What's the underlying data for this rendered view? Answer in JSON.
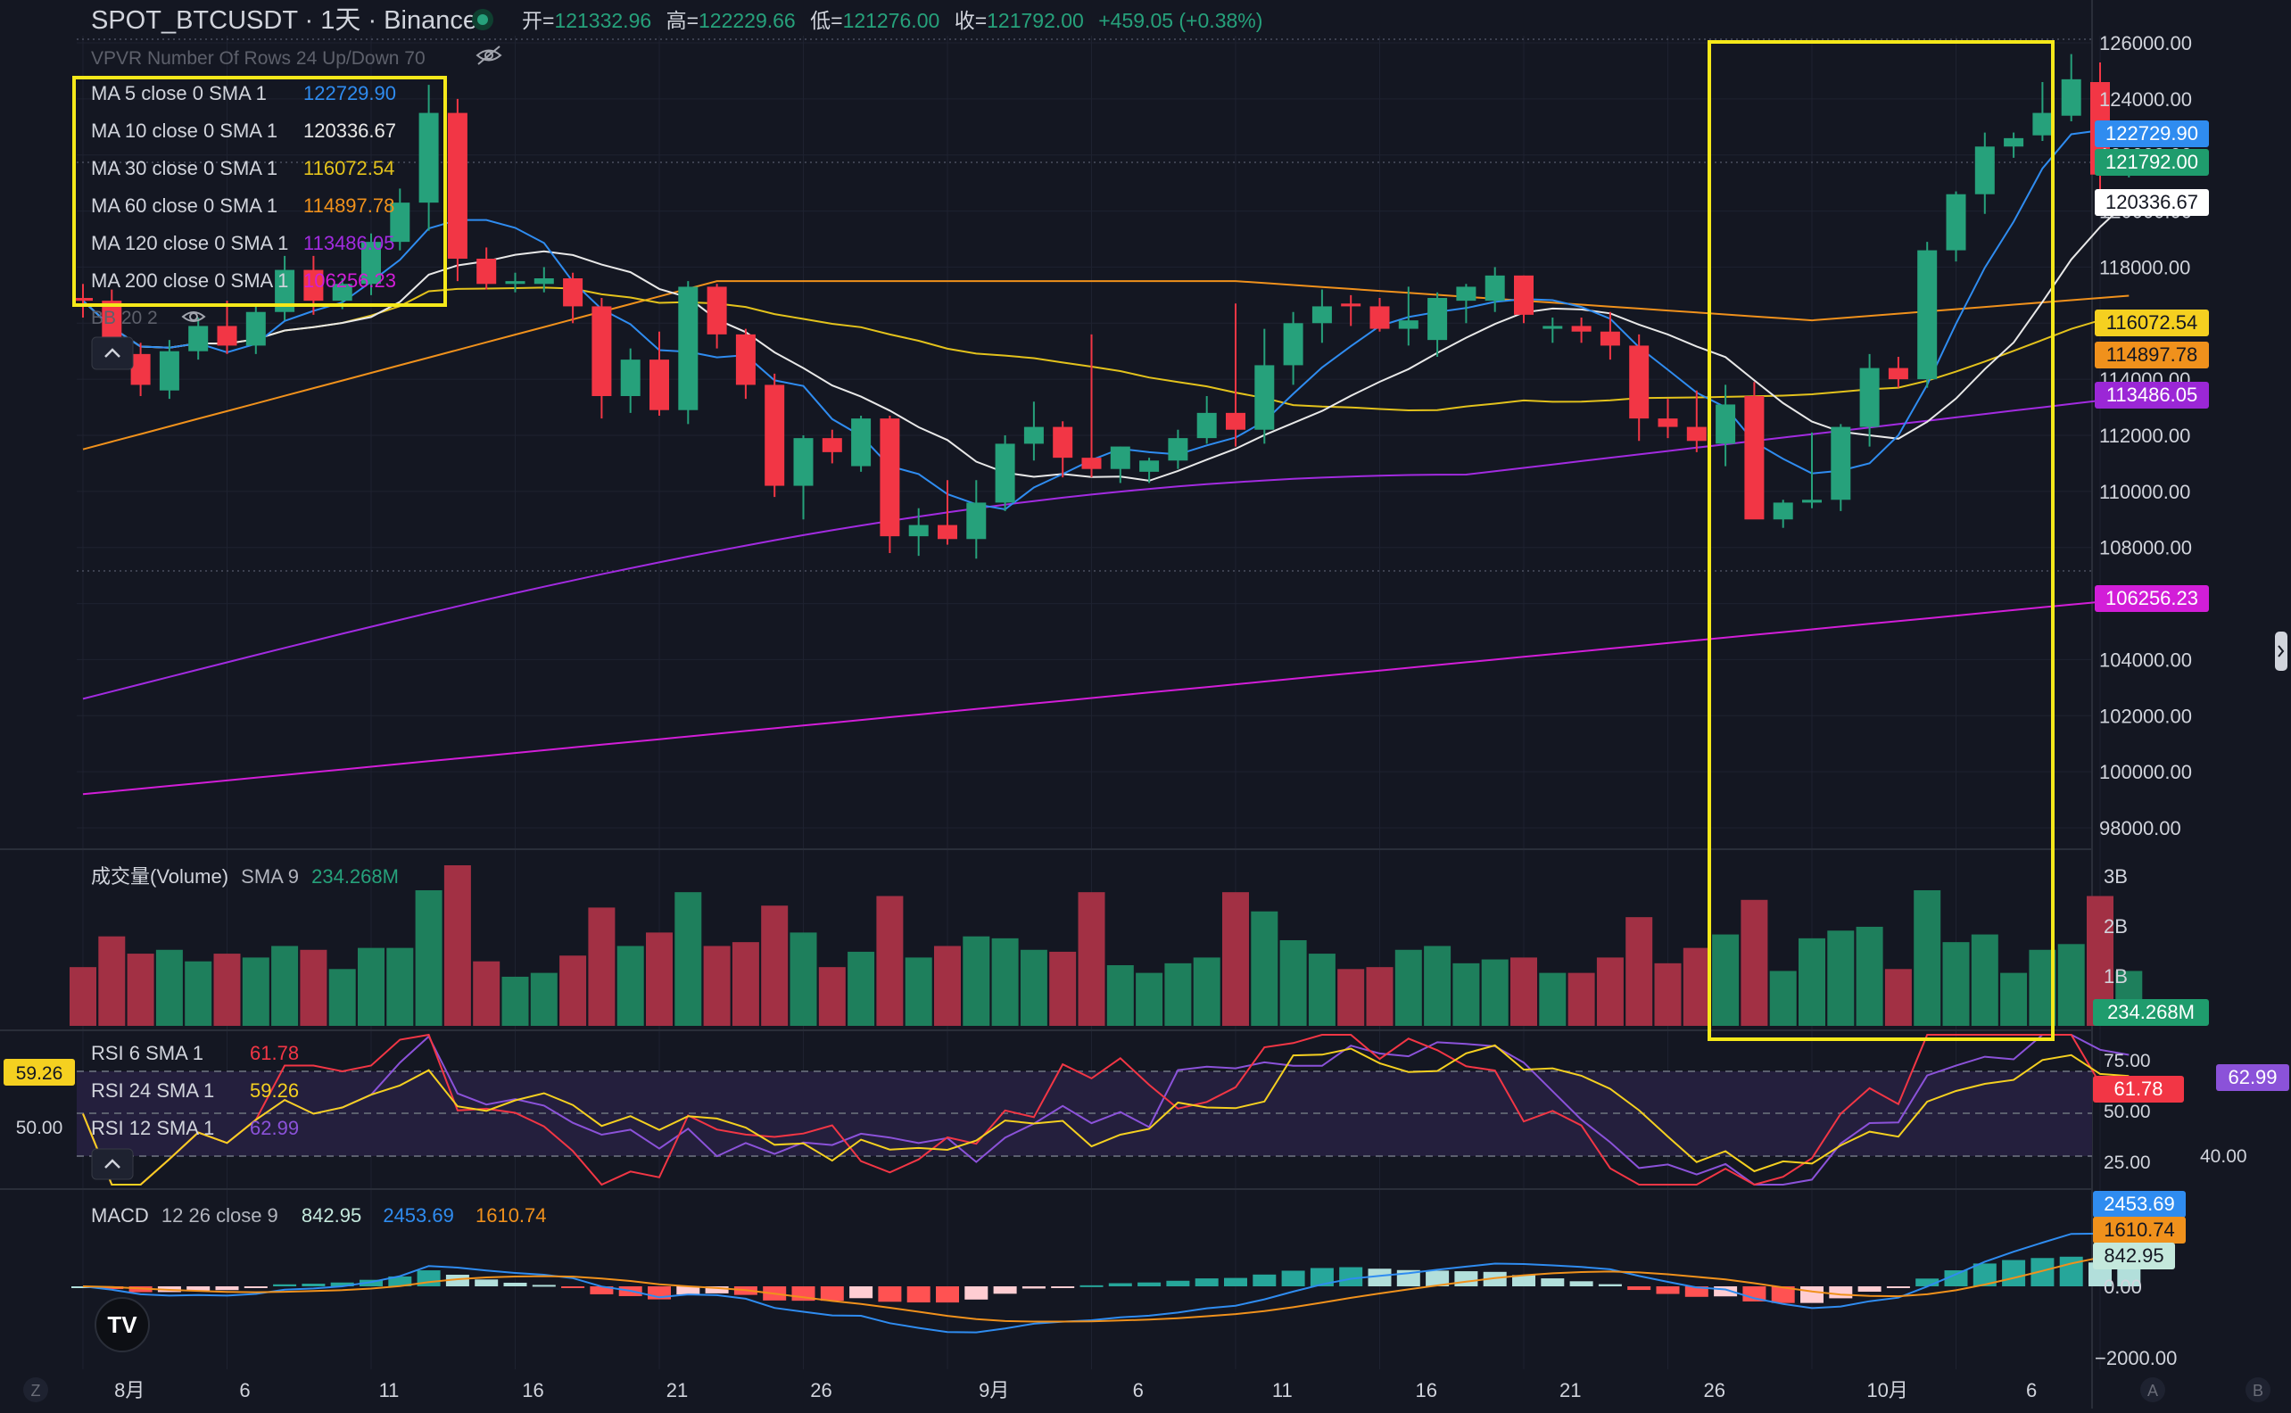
{
  "header": {
    "symbol": "SPOT_BTCUSDT · 1天 · Binance",
    "ohlc": [
      {
        "k": "开=",
        "v": "121332.96"
      },
      {
        "k": "高=",
        "v": "122229.66"
      },
      {
        "k": "低=",
        "v": "121276.00"
      },
      {
        "k": "收=",
        "v": "121792.00"
      }
    ],
    "change": "+459.05 (+0.38%)"
  },
  "vpvr_label": "VPVR Number Of Rows 24 Up/Down 70",
  "bb_label": "BB 20 2",
  "ma_legend": [
    {
      "label": "MA 5 close 0 SMA 1",
      "value": "122729.90",
      "color": "#2f8cf0"
    },
    {
      "label": "MA 10 close 0 SMA 1",
      "value": "120336.67",
      "color": "#e8e8e8"
    },
    {
      "label": "MA 30 close 0 SMA 1",
      "value": "116072.54",
      "color": "#e3c21c"
    },
    {
      "label": "MA 60 close 0 SMA 1",
      "value": "114897.78",
      "color": "#f0911c"
    },
    {
      "label": "MA 120 close 0 SMA 1",
      "value": "113486.05",
      "color": "#a22be0"
    },
    {
      "label": "MA 200 close 0 SMA 1",
      "value": "106256.23",
      "color": "#d21ed8"
    }
  ],
  "price_badges": [
    {
      "value": "122729.90",
      "color": "#2f8cf0"
    },
    {
      "value": "121792.00",
      "color": "#1f9c6d"
    },
    {
      "value": "120336.67",
      "color": "#ffffff"
    },
    {
      "value": "116072.54",
      "color": "#f5d020"
    },
    {
      "value": "114897.78",
      "color": "#f0911c"
    },
    {
      "value": "113486.05",
      "color": "#9b27d6"
    },
    {
      "value": "106256.23",
      "color": "#d21ed8"
    }
  ],
  "volume": {
    "label": "成交量(Volume)",
    "sma_label": "SMA 9",
    "sma_value": "234.268M",
    "badge": "234.268M"
  },
  "rsi": {
    "legend": [
      {
        "label": "RSI 6 SMA 1",
        "value": "61.78",
        "color": "#f23645"
      },
      {
        "label": "RSI 24 SMA 1",
        "value": "59.26",
        "color": "#f5d020"
      },
      {
        "label": "RSI 12 SMA 1",
        "value": "62.99",
        "color": "#8b52d9"
      }
    ],
    "left_badge": "59.26",
    "left_level": "50.00",
    "badge_red": "61.78",
    "badge_purple": "62.99",
    "aux_right": "40.00"
  },
  "macd": {
    "label": "MACD",
    "params": "12 26 close 9",
    "hist": "842.95",
    "macd": "2453.69",
    "signal": "1610.74",
    "badge_blue": "2453.69",
    "badge_orange": "1610.74",
    "badge_teal": "842.95"
  },
  "date_labels": [
    "8月",
    "6",
    "11",
    "16",
    "21",
    "26",
    "9月",
    "6",
    "11",
    "16",
    "21",
    "26",
    "10月",
    "6"
  ],
  "corner_buttons": {
    "left": "Z",
    "a": "A",
    "b": "B"
  },
  "colors": {
    "up": "#26a17b",
    "down": "#f23645",
    "vol_up": "#1e7f5c",
    "vol_down": "#a23044",
    "highlight": "#f5e81a",
    "bg": "#141722"
  },
  "chart_data": {
    "type": "candlestick",
    "symbol": "SPOT_BTCUSDT",
    "interval": "1天",
    "ylim": [
      97000,
      126500
    ],
    "price_ticks": [
      126000,
      124000,
      122000,
      120000,
      118000,
      116000,
      114000,
      112000,
      110000,
      108000,
      106000,
      104000,
      102000,
      100000,
      98000
    ],
    "volume_ticks": [
      "3B",
      "2B",
      "1B"
    ],
    "rsi_ticks": [
      "75.00",
      "50.00",
      "25.00"
    ],
    "macd_ticks": [
      "0.00",
      "−2000.00"
    ],
    "candles": [
      [
        116900,
        117400,
        116200,
        116800
      ],
      [
        116800,
        117200,
        114400,
        114900
      ],
      [
        114900,
        115300,
        113400,
        113800
      ],
      [
        113600,
        115400,
        113300,
        115000
      ],
      [
        115000,
        116200,
        114700,
        115900
      ],
      [
        115900,
        116800,
        114900,
        115200
      ],
      [
        115200,
        116600,
        114900,
        116400
      ],
      [
        116400,
        118400,
        116100,
        117900
      ],
      [
        117900,
        118400,
        116300,
        116800
      ],
      [
        116800,
        117600,
        116500,
        117400
      ],
      [
        117400,
        119200,
        117000,
        118900
      ],
      [
        118900,
        120800,
        118600,
        120300
      ],
      [
        120300,
        124500,
        119300,
        123500
      ],
      [
        123500,
        124000,
        117500,
        118300
      ],
      [
        118300,
        118700,
        117200,
        117400
      ],
      [
        117400,
        117800,
        117100,
        117500
      ],
      [
        117400,
        118000,
        117100,
        117600
      ],
      [
        117600,
        117800,
        116000,
        116600
      ],
      [
        116600,
        116900,
        112600,
        113400
      ],
      [
        113400,
        115100,
        112800,
        114700
      ],
      [
        114700,
        115700,
        112700,
        112900
      ],
      [
        112900,
        117500,
        112400,
        117300
      ],
      [
        117300,
        117400,
        115100,
        115600
      ],
      [
        115600,
        115800,
        113300,
        113800
      ],
      [
        113800,
        114200,
        109800,
        110200
      ],
      [
        110200,
        112000,
        109000,
        111900
      ],
      [
        111900,
        112200,
        111000,
        111400
      ],
      [
        110900,
        112700,
        110700,
        112600
      ],
      [
        112600,
        112700,
        107800,
        108400
      ],
      [
        108400,
        109400,
        107700,
        108800
      ],
      [
        108800,
        110400,
        108100,
        108300
      ],
      [
        108300,
        110400,
        107600,
        109600
      ],
      [
        109600,
        112000,
        109300,
        111700
      ],
      [
        111700,
        113200,
        111100,
        112300
      ],
      [
        112300,
        112500,
        110500,
        111200
      ],
      [
        111200,
        115600,
        110500,
        110800
      ],
      [
        110800,
        111600,
        110300,
        111600
      ],
      [
        110700,
        111200,
        110300,
        111100
      ],
      [
        111100,
        112200,
        110800,
        111900
      ],
      [
        111900,
        113400,
        111700,
        112800
      ],
      [
        112800,
        116700,
        111600,
        112200
      ],
      [
        112200,
        115800,
        111700,
        114500
      ],
      [
        114500,
        116400,
        113800,
        116000
      ],
      [
        116000,
        117200,
        115300,
        116600
      ],
      [
        116700,
        117000,
        115900,
        116600
      ],
      [
        116600,
        116900,
        115700,
        115800
      ],
      [
        115800,
        117300,
        115200,
        116100
      ],
      [
        115400,
        117100,
        114800,
        116900
      ],
      [
        116800,
        117400,
        116000,
        117300
      ],
      [
        116800,
        118000,
        116400,
        117700
      ],
      [
        117700,
        117700,
        116000,
        116300
      ],
      [
        115800,
        116200,
        115300,
        115900
      ],
      [
        115900,
        116200,
        115300,
        115700
      ],
      [
        115700,
        116400,
        114700,
        115200
      ],
      [
        115200,
        115600,
        111800,
        112600
      ],
      [
        112600,
        113300,
        111900,
        112300
      ],
      [
        112300,
        113600,
        111400,
        111800
      ],
      [
        111700,
        113800,
        110900,
        113100
      ],
      [
        113400,
        113900,
        109200,
        109000
      ],
      [
        109000,
        109700,
        108700,
        109600
      ],
      [
        109600,
        112100,
        109400,
        109700
      ],
      [
        109700,
        112400,
        109300,
        112300
      ],
      [
        112300,
        114900,
        111600,
        114400
      ],
      [
        114400,
        114800,
        113700,
        114000
      ],
      [
        114000,
        118900,
        113700,
        118600
      ],
      [
        118600,
        120700,
        118200,
        120600
      ],
      [
        120600,
        122800,
        119900,
        122300
      ],
      [
        122300,
        122800,
        121900,
        122600
      ],
      [
        122700,
        124600,
        122500,
        123500
      ],
      [
        123400,
        125600,
        123200,
        124700
      ],
      [
        124600,
        125300,
        120400,
        121300
      ],
      [
        121300,
        122200,
        121200,
        121800
      ]
    ],
    "ma_values": {
      "MA5": 122729.9,
      "MA10": 120336.67,
      "MA30": 116072.54,
      "MA60": 114897.78,
      "MA120": 113486.05,
      "MA200": 106256.23
    },
    "rsi_values": {
      "RSI6": 61.78,
      "RSI12": 62.99,
      "RSI24": 59.26
    },
    "macd_values": {
      "MACD": 2453.69,
      "signal": 1610.74,
      "hist": 842.95
    },
    "volume_sma9": "234.268M"
  }
}
